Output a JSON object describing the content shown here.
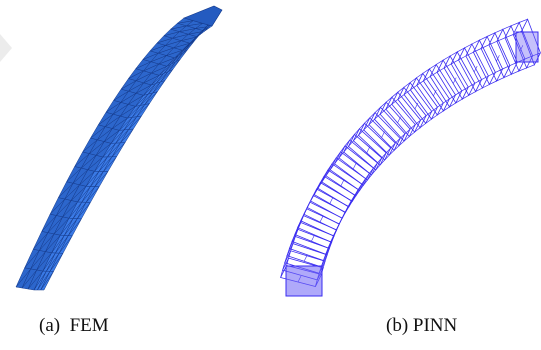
{
  "panels": [
    {
      "caption": "(a)  FEM",
      "method": "FEM",
      "render_style": "triangulated-surface-mesh",
      "mesh_color": "#2f6fd8",
      "edge_color": "#143a8c"
    },
    {
      "caption": "(b) PINN",
      "method": "PINN",
      "render_style": "wireframe-point-slices",
      "mesh_color": "#3a2cf0",
      "edge_color": "#3a2cf0"
    }
  ]
}
